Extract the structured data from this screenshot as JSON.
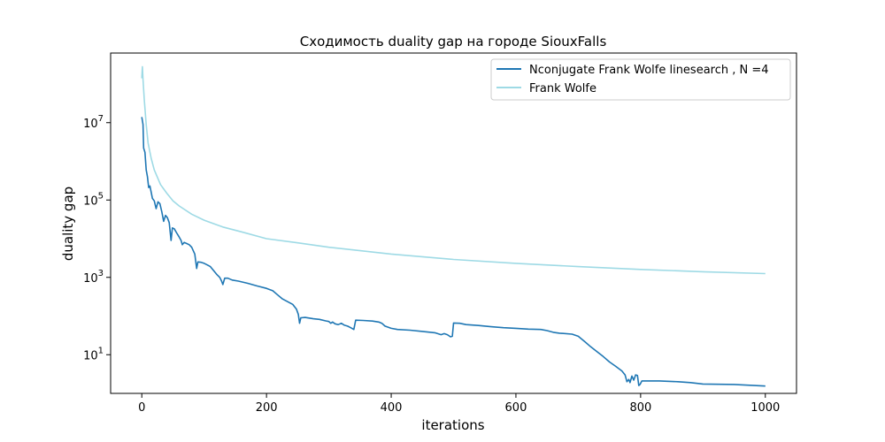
{
  "chart_data": {
    "type": "line",
    "title": "Сходимость duality gap на городе SiouxFalls",
    "xlabel": "iterations",
    "ylabel": "duality gap",
    "xlim": [
      -50,
      1050
    ],
    "ylim_log10": [
      0.0,
      8.8
    ],
    "y_scale": "log",
    "x_ticks": [
      0,
      200,
      400,
      600,
      800,
      1000
    ],
    "y_ticks": [
      {
        "value": 10,
        "base": "10",
        "exp": "1"
      },
      {
        "value": 1000,
        "base": "10",
        "exp": "3"
      },
      {
        "value": 100000,
        "base": "10",
        "exp": "5"
      },
      {
        "value": 10000000,
        "base": "10",
        "exp": "7"
      }
    ],
    "grid": false,
    "legend_position": "top-right",
    "series": [
      {
        "name": "Nconjugate Frank Wolfe linesearch , N =4",
        "color": "#1f77b4",
        "points": [
          [
            0,
            14000000
          ],
          [
            2,
            9000000
          ],
          [
            3,
            2200000
          ],
          [
            5,
            1700000
          ],
          [
            7,
            600000
          ],
          [
            9,
            400000
          ],
          [
            11,
            210000
          ],
          [
            13,
            230000
          ],
          [
            15,
            160000
          ],
          [
            17,
            110000
          ],
          [
            20,
            95000
          ],
          [
            23,
            60000
          ],
          [
            26,
            90000
          ],
          [
            29,
            80000
          ],
          [
            32,
            50000
          ],
          [
            35,
            28000
          ],
          [
            38,
            40000
          ],
          [
            41,
            35000
          ],
          [
            44,
            26000
          ],
          [
            47,
            9000
          ],
          [
            49,
            19000
          ],
          [
            52,
            18000
          ],
          [
            56,
            14000
          ],
          [
            60,
            11000
          ],
          [
            63,
            9000
          ],
          [
            65,
            7000
          ],
          [
            68,
            8000
          ],
          [
            72,
            7500
          ],
          [
            76,
            7000
          ],
          [
            80,
            6000
          ],
          [
            85,
            4000
          ],
          [
            88,
            1700
          ],
          [
            90,
            2500
          ],
          [
            95,
            2450
          ],
          [
            100,
            2300
          ],
          [
            105,
            2100
          ],
          [
            110,
            1900
          ],
          [
            115,
            1500
          ],
          [
            120,
            1200
          ],
          [
            125,
            1000
          ],
          [
            128,
            800
          ],
          [
            130,
            650
          ],
          [
            133,
            950
          ],
          [
            138,
            950
          ],
          [
            145,
            850
          ],
          [
            155,
            800
          ],
          [
            170,
            700
          ],
          [
            185,
            600
          ],
          [
            200,
            520
          ],
          [
            210,
            450
          ],
          [
            218,
            350
          ],
          [
            225,
            280
          ],
          [
            235,
            230
          ],
          [
            242,
            200
          ],
          [
            248,
            150
          ],
          [
            251,
            110
          ],
          [
            253,
            65
          ],
          [
            255,
            90
          ],
          [
            262,
            92
          ],
          [
            275,
            85
          ],
          [
            285,
            82
          ],
          [
            295,
            75
          ],
          [
            300,
            72
          ],
          [
            303,
            65
          ],
          [
            306,
            70
          ],
          [
            310,
            63
          ],
          [
            315,
            60
          ],
          [
            320,
            65
          ],
          [
            325,
            58
          ],
          [
            330,
            55
          ],
          [
            335,
            50
          ],
          [
            340,
            45
          ],
          [
            343,
            78
          ],
          [
            355,
            77
          ],
          [
            370,
            74
          ],
          [
            380,
            70
          ],
          [
            385,
            65
          ],
          [
            390,
            55
          ],
          [
            400,
            48
          ],
          [
            410,
            45
          ],
          [
            430,
            43
          ],
          [
            450,
            40
          ],
          [
            470,
            37
          ],
          [
            480,
            33
          ],
          [
            485,
            35
          ],
          [
            490,
            33
          ],
          [
            495,
            29
          ],
          [
            498,
            30
          ],
          [
            500,
            66
          ],
          [
            510,
            65
          ],
          [
            520,
            60
          ],
          [
            540,
            57
          ],
          [
            560,
            53
          ],
          [
            580,
            50
          ],
          [
            600,
            48
          ],
          [
            620,
            46
          ],
          [
            640,
            45
          ],
          [
            650,
            42
          ],
          [
            660,
            38
          ],
          [
            670,
            36
          ],
          [
            690,
            34
          ],
          [
            700,
            30
          ],
          [
            710,
            22
          ],
          [
            720,
            16
          ],
          [
            730,
            12
          ],
          [
            740,
            9
          ],
          [
            750,
            6.5
          ],
          [
            760,
            5
          ],
          [
            770,
            3.8
          ],
          [
            775,
            3
          ],
          [
            778,
            2
          ],
          [
            781,
            2.3
          ],
          [
            783,
            1.9
          ],
          [
            786,
            2.8
          ],
          [
            789,
            2.2
          ],
          [
            792,
            3
          ],
          [
            795,
            2.9
          ],
          [
            797,
            1.6
          ],
          [
            799,
            1.7
          ],
          [
            802,
            2.1
          ],
          [
            810,
            2.1
          ],
          [
            830,
            2.1
          ],
          [
            860,
            2.0
          ],
          [
            880,
            1.9
          ],
          [
            900,
            1.75
          ],
          [
            950,
            1.7
          ],
          [
            1000,
            1.55
          ]
        ]
      },
      {
        "name": "Frank Wolfe",
        "color": "#9edae5",
        "points": [
          [
            0,
            140000000
          ],
          [
            1,
            280000000
          ],
          [
            2,
            130000000
          ],
          [
            4,
            40000000
          ],
          [
            7,
            9000000
          ],
          [
            10,
            3000000
          ],
          [
            15,
            1200000
          ],
          [
            20,
            600000
          ],
          [
            30,
            250000
          ],
          [
            40,
            150000
          ],
          [
            50,
            95000
          ],
          [
            60,
            70000
          ],
          [
            80,
            43000
          ],
          [
            100,
            30000
          ],
          [
            130,
            20000
          ],
          [
            160,
            15000
          ],
          [
            200,
            10000
          ],
          [
            250,
            7800
          ],
          [
            300,
            6000
          ],
          [
            400,
            4000
          ],
          [
            500,
            2900
          ],
          [
            600,
            2300
          ],
          [
            700,
            1900
          ],
          [
            800,
            1600
          ],
          [
            900,
            1400
          ],
          [
            1000,
            1250
          ]
        ]
      }
    ]
  }
}
